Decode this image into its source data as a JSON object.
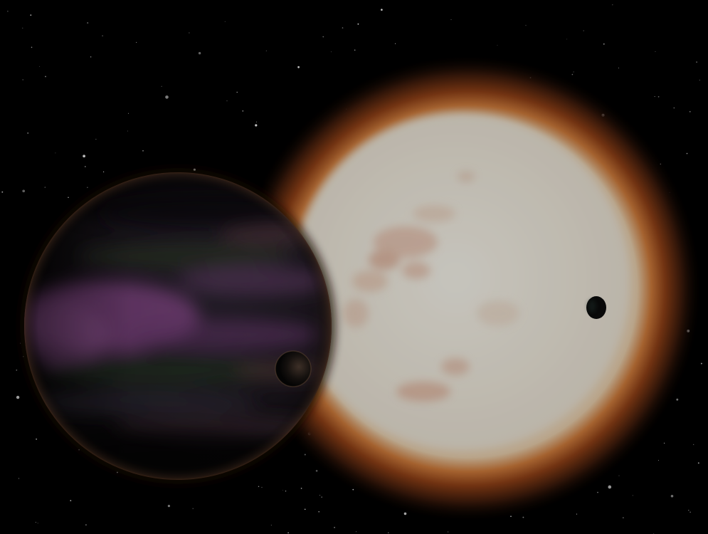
{
  "scene": {
    "subject": "space-art",
    "elements": [
      "star-field",
      "star",
      "gas-giant-planet",
      "moon-near-planet",
      "moon-transiting-star"
    ],
    "colors": {
      "background": "#000000",
      "star_core": "#e9e6dd",
      "star_corona": "#b0581f",
      "planet_dark": "#16131a",
      "planet_band_purple": "#8d4e91",
      "planet_band_green": "#2c3528",
      "moon": "#0b0b0b"
    }
  }
}
